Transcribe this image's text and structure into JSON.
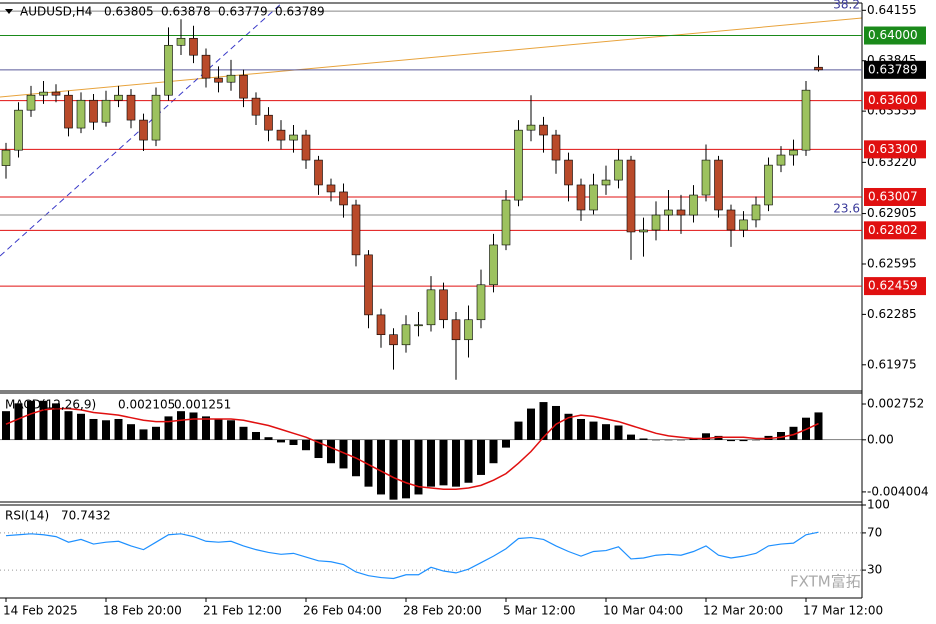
{
  "chart_data": [
    {
      "type": "candlestick",
      "header": {
        "symbol": "AUDUSD,H4",
        "values": [
          0.63805,
          0.63878,
          0.63779,
          0.63789
        ]
      },
      "categories": [
        "14 Feb 2025",
        null,
        null,
        null,
        null,
        null,
        null,
        null,
        "18 Feb 20:00",
        null,
        null,
        null,
        null,
        null,
        null,
        null,
        "21 Feb 12:00",
        null,
        null,
        null,
        null,
        null,
        null,
        null,
        "26 Feb 04:00",
        null,
        null,
        null,
        null,
        null,
        null,
        null,
        "28 Feb 20:00",
        null,
        null,
        null,
        null,
        null,
        null,
        null,
        "5 Mar 12:00",
        null,
        null,
        null,
        null,
        null,
        null,
        null,
        "10 Mar 04:00",
        null,
        null,
        null,
        null,
        null,
        null,
        null,
        "12 Mar 20:00",
        null,
        null,
        null,
        null,
        null,
        null,
        null,
        "17 Mar 12:00",
        null
      ],
      "open": [
        0.632,
        0.63295,
        0.63541,
        0.63633,
        0.63652,
        0.63633,
        0.63431,
        0.63602,
        0.63467,
        0.63602,
        0.63633,
        0.6348,
        0.63357,
        0.63633,
        0.6394,
        0.63983,
        0.63879,
        0.63738,
        0.63713,
        0.63756,
        0.63615,
        0.6351,
        0.63418,
        0.63357,
        0.63388,
        0.63234,
        0.63081,
        0.63038,
        0.62958,
        0.62651,
        0.62282,
        0.6216,
        0.62098,
        0.62221,
        0.62221,
        0.62436,
        0.62252,
        0.62129,
        0.62252,
        0.62467,
        0.62712,
        0.62988,
        0.63418,
        0.63449,
        0.63388,
        0.63234,
        0.63081,
        0.62927,
        0.63081,
        0.63111,
        0.63234,
        0.62792,
        0.62804,
        0.62896,
        0.62927,
        0.62896,
        0.63019,
        0.63234,
        0.62927,
        0.62804,
        0.62866,
        0.62958,
        0.63203,
        0.63265,
        0.63295,
        0.63805
      ],
      "high": [
        0.6334,
        0.6359,
        0.6369,
        0.6372,
        0.637,
        0.6366,
        0.6365,
        0.6364,
        0.6366,
        0.6369,
        0.6367,
        0.6352,
        0.6368,
        0.6405,
        0.641,
        0.6406,
        0.6392,
        0.6381,
        0.6385,
        0.6379,
        0.6365,
        0.6356,
        0.6348,
        0.6345,
        0.6342,
        0.6326,
        0.6312,
        0.6309,
        0.6299,
        0.6268,
        0.6232,
        0.622,
        0.6228,
        0.623,
        0.6252,
        0.6248,
        0.623,
        0.6234,
        0.6256,
        0.6278,
        0.6305,
        0.6348,
        0.63633,
        0.635,
        0.6342,
        0.6328,
        0.6312,
        0.6315,
        0.632,
        0.633,
        0.6326,
        0.6288,
        0.6298,
        0.6305,
        0.6302,
        0.6308,
        0.6333,
        0.6326,
        0.6296,
        0.6292,
        0.6301,
        0.6325,
        0.6332,
        0.6336,
        0.6372,
        0.63878
      ],
      "low": [
        0.6312,
        0.6325,
        0.635,
        0.6358,
        0.6359,
        0.6338,
        0.634,
        0.6342,
        0.6344,
        0.6356,
        0.6343,
        0.6329,
        0.6332,
        0.636,
        0.6388,
        0.6383,
        0.6368,
        0.6365,
        0.6366,
        0.6356,
        0.6345,
        0.6335,
        0.633,
        0.6328,
        0.6318,
        0.6302,
        0.6298,
        0.6288,
        0.6258,
        0.622,
        0.6208,
        0.61945,
        0.6205,
        0.6215,
        0.6218,
        0.622,
        0.61883,
        0.6202,
        0.622,
        0.6242,
        0.6268,
        0.6295,
        0.6335,
        0.6328,
        0.6315,
        0.6298,
        0.6286,
        0.629,
        0.6302,
        0.6306,
        0.6262,
        0.6264,
        0.6274,
        0.628,
        0.6278,
        0.6285,
        0.6298,
        0.6288,
        0.627,
        0.6276,
        0.6282,
        0.6292,
        0.6316,
        0.632,
        0.6326,
        0.63779
      ],
      "close": [
        0.63295,
        0.63541,
        0.63633,
        0.63652,
        0.63633,
        0.63431,
        0.63602,
        0.63467,
        0.63602,
        0.63633,
        0.6348,
        0.63357,
        0.63633,
        0.6394,
        0.63983,
        0.63879,
        0.63738,
        0.63713,
        0.63756,
        0.63615,
        0.6351,
        0.63418,
        0.63357,
        0.63388,
        0.63234,
        0.63081,
        0.63038,
        0.62958,
        0.62651,
        0.62282,
        0.6216,
        0.62098,
        0.62221,
        0.62221,
        0.62436,
        0.62252,
        0.62129,
        0.62252,
        0.62467,
        0.62712,
        0.62988,
        0.63418,
        0.63449,
        0.63388,
        0.63234,
        0.63081,
        0.62927,
        0.63081,
        0.63111,
        0.63234,
        0.62792,
        0.62804,
        0.62896,
        0.62927,
        0.62896,
        0.63019,
        0.63234,
        0.62927,
        0.62804,
        0.62866,
        0.62958,
        0.63203,
        0.63265,
        0.63295,
        0.63664,
        0.63789
      ],
      "up_color": "#9dc25f",
      "down_color": "#b94a2a",
      "ylim": [
        0.6182,
        0.642
      ],
      "yticks": [
        0.64155,
        0.63845,
        0.63535,
        {
          "value": 0.6322,
          "label": "0.63220"
        },
        0.62905,
        0.62595,
        0.62285,
        0.61975
      ],
      "levels": [
        {
          "value": 0.64,
          "label": "0.64000",
          "color": "#1a8a1a"
        },
        {
          "value": 0.63789,
          "label": "0.63789",
          "color": "#000000"
        },
        {
          "value": 0.636,
          "label": "0.63600",
          "color": "#e01010"
        },
        {
          "value": 0.633,
          "label": "0.63300",
          "color": "#e01010"
        },
        {
          "value": 0.63007,
          "label": "0.63007",
          "color": "#e01010"
        },
        {
          "value": 0.62802,
          "label": "0.62802",
          "color": "#e01010"
        },
        {
          "value": 0.62459,
          "label": "0.62459",
          "color": "#e01010"
        }
      ],
      "fib_levels": [
        {
          "value": 0.6415,
          "label": "38.2"
        },
        {
          "value": 0.62896,
          "label": "23.6"
        }
      ],
      "watermark": "FXTM富拓"
    },
    {
      "type": "macd",
      "label": "MACD(12,26,9)",
      "histogram": {
        "color": "#000000",
        "values": [
          0.0022,
          0.0028,
          0.003,
          0.003,
          0.0028,
          0.0022,
          0.002,
          0.0016,
          0.0015,
          0.0016,
          0.0012,
          0.0008,
          0.001,
          0.0018,
          0.0022,
          0.0021,
          0.0018,
          0.0016,
          0.0015,
          0.001,
          0.0006,
          0.0002,
          -0.0002,
          -0.0004,
          -0.0008,
          -0.0014,
          -0.0018,
          -0.0022,
          -0.0028,
          -0.0036,
          -0.0042,
          -0.0046,
          -0.0045,
          -0.0042,
          -0.0036,
          -0.0035,
          -0.0036,
          -0.0033,
          -0.0027,
          -0.0018,
          -0.0006,
          0.0014,
          0.0024,
          0.0029,
          0.0026,
          0.002,
          0.0016,
          0.0014,
          0.0012,
          0.0011,
          0.0004,
          0.0001,
          0,
          0,
          0,
          0.0001,
          0.0005,
          0.0003,
          -0.0001,
          -0.0001,
          0,
          0.0003,
          0.0006,
          0.001,
          0.0017,
          0.002105
        ]
      },
      "signal": {
        "color": "#e01010",
        "values": [
          0.0012,
          0.0016,
          0.002,
          0.0023,
          0.0024,
          0.0024,
          0.0023,
          0.0021,
          0.002,
          0.0019,
          0.0017,
          0.0015,
          0.0014,
          0.0014,
          0.0015,
          0.0016,
          0.0016,
          0.0016,
          0.0016,
          0.0015,
          0.0013,
          0.0011,
          0.0008,
          0.0005,
          0.0002,
          -0.0002,
          -0.0006,
          -0.001,
          -0.0014,
          -0.0019,
          -0.0024,
          -0.0029,
          -0.0033,
          -0.0036,
          -0.0037,
          -0.0038,
          -0.0038,
          -0.0037,
          -0.0035,
          -0.0031,
          -0.0026,
          -0.0018,
          -0.0009,
          0.0002,
          0.0012,
          0.0017,
          0.0019,
          0.0018,
          0.0016,
          0.0014,
          0.0011,
          0.0008,
          0.0005,
          0.0003,
          0.0002,
          0.0001,
          0.0001,
          0.0002,
          0.0002,
          0.0002,
          0.0001,
          0.0001,
          0.0002,
          0.0004,
          0.0008,
          0.001251
        ]
      },
      "ylim": [
        -0.00478,
        0.003597
      ],
      "yticks": [
        0.002752,
        {
          "value": 0,
          "label": "0.00"
        },
        -0.004004
      ]
    },
    {
      "type": "line",
      "label": "RSI(14)",
      "color": "#1e90ff",
      "values": [
        67,
        68,
        69,
        68,
        66,
        60,
        63,
        58,
        60,
        61,
        56,
        52,
        60,
        68,
        69,
        66,
        61,
        60,
        61,
        56,
        52,
        49,
        47,
        48,
        44,
        40,
        39,
        36,
        28,
        24,
        22,
        21,
        25,
        25,
        33,
        29,
        27,
        31,
        38,
        45,
        53,
        64,
        65,
        63,
        56,
        50,
        45,
        50,
        51,
        55,
        42,
        43,
        46,
        47,
        46,
        50,
        56,
        46,
        43,
        45,
        48,
        56,
        58,
        59,
        68,
        70.7432
      ],
      "ylim": [
        0,
        100
      ],
      "yticks": [
        100,
        70,
        30
      ]
    }
  ]
}
